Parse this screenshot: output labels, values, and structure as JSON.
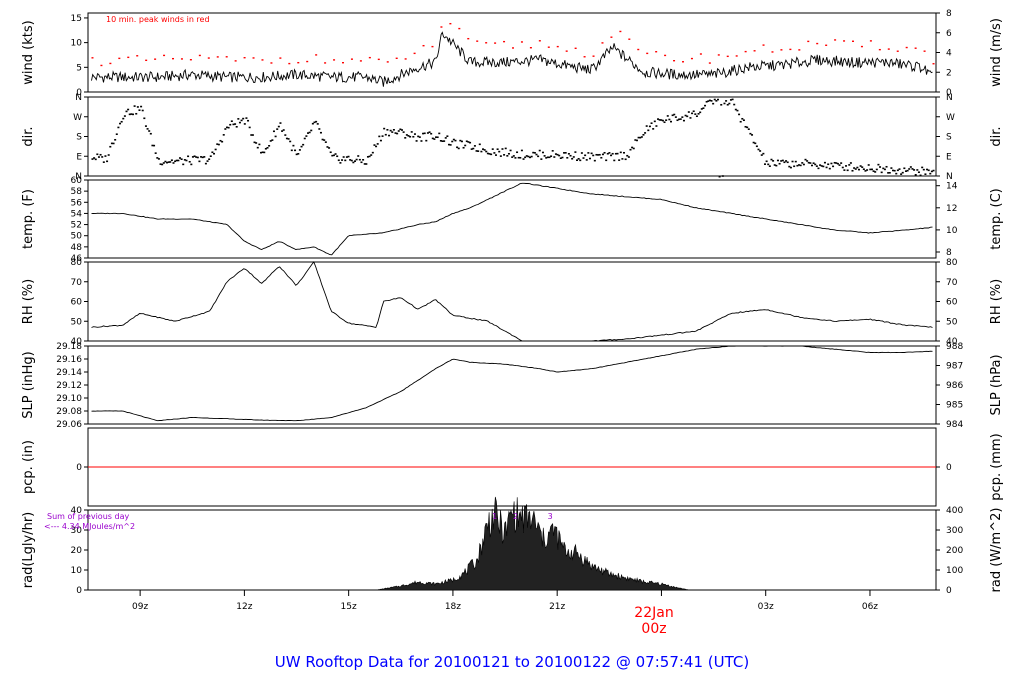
{
  "footer_title": "UW Rooftop Data for 20100121  to  20100122 @ 07:57:41  (UTC)",
  "date_label": "22Jan",
  "date_sublabel": "00z",
  "time_ticks": [
    "09z",
    "12z",
    "15z",
    "18z",
    "21z",
    "00z",
    "03z",
    "06z"
  ],
  "colors": {
    "axis": "#000000",
    "peak": "#ff0000",
    "pcp_line": "#ff0000",
    "footer": "#0000ff",
    "date": "#ff0000",
    "annot": "#9900cc"
  },
  "chart_data": [
    {
      "id": "wind",
      "type": "line",
      "ylabel_left": "wind (kts)",
      "ylabel_right": "wind (m/s)",
      "ylim": [
        0,
        16
      ],
      "left_ticks": [
        "0",
        "5",
        "10",
        "15"
      ],
      "right_ticks": [
        "0",
        "2",
        "4",
        "6",
        "8"
      ],
      "annotation": "10 min. peak winds in red",
      "x_hours": [
        7.6,
        8.5,
        9.5,
        10.5,
        11.5,
        12.5,
        13.5,
        14.5,
        15.5,
        16.0,
        17.0,
        17.5,
        17.7,
        18.5,
        19.5,
        20.5,
        21.5,
        22.0,
        22.6,
        23.5,
        24.5,
        25.5,
        26.5,
        27.5,
        28.5,
        29.5,
        30.5,
        31.5,
        31.8
      ],
      "values": [
        3,
        3,
        3,
        3.5,
        3,
        3,
        3.5,
        3,
        3,
        2,
        5,
        6,
        12,
        6,
        6,
        6.5,
        5,
        4.5,
        9,
        4,
        3.5,
        3.5,
        5,
        5.5,
        6.5,
        6,
        6,
        5,
        3
      ]
    },
    {
      "id": "dir",
      "type": "scatter",
      "ylabel": "dir.",
      "ticks": [
        "N",
        "E",
        "S",
        "W",
        "N"
      ],
      "ylim": [
        0,
        360
      ],
      "x_hours": [
        7.6,
        8.0,
        8.5,
        9.0,
        9.5,
        10.0,
        11.0,
        11.5,
        12.0,
        12.5,
        13.0,
        13.5,
        14.0,
        14.5,
        15.0,
        15.5,
        16.0,
        16.5,
        17.0,
        17.5,
        18.0,
        18.5,
        19.0,
        20.0,
        21.0,
        22.0,
        22.5,
        23.0,
        23.5,
        24.0,
        24.5,
        25.0,
        25.5,
        26.0,
        27.0,
        28.0,
        29.0,
        30.0,
        31.0,
        31.8
      ],
      "values": [
        90,
        80,
        290,
        310,
        75,
        70,
        80,
        230,
        260,
        100,
        240,
        90,
        250,
        85,
        80,
        70,
        210,
        200,
        180,
        190,
        150,
        140,
        120,
        100,
        100,
        90,
        90,
        100,
        210,
        260,
        270,
        290,
        350,
        340,
        60,
        60,
        50,
        40,
        30,
        20
      ]
    },
    {
      "id": "temp",
      "type": "line",
      "ylabel_left": "temp. (F)",
      "ylabel_right": "temp. (C)",
      "ylim": [
        46,
        60
      ],
      "left_ticks": [
        "46",
        "48",
        "50",
        "52",
        "54",
        "56",
        "58",
        "60"
      ],
      "right_ticks": [
        "8",
        "10",
        "12",
        "14"
      ],
      "x_hours": [
        7.6,
        8.5,
        9.5,
        10.5,
        11.5,
        12.0,
        12.5,
        13.0,
        13.5,
        14.0,
        14.5,
        15.0,
        16.0,
        17.0,
        17.5,
        18.0,
        18.5,
        19.5,
        20.0,
        21.0,
        22.0,
        23.0,
        24.0,
        25.0,
        26.0,
        27.0,
        28.0,
        29.0,
        30.0,
        31.0,
        31.8
      ],
      "values": [
        54,
        54,
        53,
        53,
        52,
        49,
        47.5,
        49,
        47.5,
        48,
        46.5,
        50,
        50.5,
        52,
        52.5,
        54,
        55,
        58,
        59.5,
        58.5,
        57.5,
        57,
        56.5,
        55,
        54,
        53,
        52,
        51,
        50.5,
        51,
        51.5
      ]
    },
    {
      "id": "rh",
      "type": "line",
      "ylabel_left": "RH (%)",
      "ylabel_right": "RH (%)",
      "ylim": [
        40,
        80
      ],
      "left_ticks": [
        "40",
        "50",
        "60",
        "70",
        "80"
      ],
      "right_ticks": [
        "40",
        "50",
        "60",
        "70",
        "80"
      ],
      "x_hours": [
        7.6,
        8.5,
        9.0,
        10.0,
        11.0,
        11.5,
        12.0,
        12.5,
        13.0,
        13.5,
        14.0,
        14.5,
        15.0,
        15.8,
        16.0,
        16.5,
        17.0,
        17.5,
        18.0,
        19.0,
        20.0,
        21.0,
        22.0,
        23.0,
        24.0,
        25.0,
        26.0,
        27.0,
        28.0,
        29.0,
        30.0,
        31.0,
        31.8
      ],
      "values": [
        47,
        48,
        54,
        50,
        55,
        70,
        77,
        69,
        78,
        68,
        80,
        55,
        49,
        47,
        60,
        62,
        56,
        61,
        53,
        50,
        40,
        38,
        40,
        41,
        43,
        45,
        54,
        56,
        52,
        50,
        51,
        48,
        47
      ]
    },
    {
      "id": "slp",
      "type": "line",
      "ylabel_left": "SLP (inHg)",
      "ylabel_right": "SLP (hPa)",
      "ylim": [
        29.06,
        29.18
      ],
      "left_ticks": [
        "29.06",
        "29.08",
        "29.10",
        "29.12",
        "29.14",
        "29.16",
        "29.18"
      ],
      "right_ticks": [
        "984",
        "985",
        "986",
        "987",
        "988"
      ],
      "x_hours": [
        7.6,
        8.5,
        9.5,
        10.5,
        11.5,
        12.5,
        13.5,
        14.5,
        15.5,
        16.5,
        17.5,
        18.0,
        18.5,
        19.5,
        20.5,
        21.0,
        22.0,
        23.0,
        24.0,
        25.0,
        26.0,
        27.0,
        28.0,
        29.0,
        30.0,
        31.0,
        31.8
      ],
      "values": [
        29.08,
        29.08,
        29.065,
        29.07,
        29.068,
        29.066,
        29.065,
        29.07,
        29.085,
        29.11,
        29.145,
        29.16,
        29.155,
        29.152,
        29.145,
        29.14,
        29.145,
        29.155,
        29.165,
        29.175,
        29.18,
        29.18,
        29.18,
        29.175,
        29.17,
        29.17,
        29.172
      ]
    },
    {
      "id": "pcp",
      "type": "line",
      "ylabel_left": "pcp. (in)",
      "ylabel_right": "pcp. (mm)",
      "ylim": [
        -1,
        1
      ],
      "left_ticks": [
        "0"
      ],
      "right_ticks": [
        "0"
      ],
      "x_hours": [
        7.6,
        31.8
      ],
      "values": [
        0,
        0
      ]
    },
    {
      "id": "rad",
      "type": "area",
      "ylabel_left": "rad(Lgly/hr)",
      "ylabel_right": "rad (W/m^2)",
      "ylim": [
        0,
        40
      ],
      "left_ticks": [
        "0",
        "10",
        "20",
        "30",
        "40"
      ],
      "right_ticks": [
        "0",
        "100",
        "200",
        "300",
        "400"
      ],
      "annotation_line1": "Sum of previous day",
      "annotation_line2": "<--- 4.34 MJoules/m^2",
      "markers": [
        "1",
        "2",
        "3"
      ],
      "marker_hours": [
        19.2,
        19.8,
        20.8
      ],
      "x_hours": [
        15.8,
        16.5,
        17.0,
        17.5,
        18.0,
        18.3,
        18.7,
        19.0,
        19.2,
        19.5,
        19.7,
        20.0,
        20.3,
        20.6,
        20.9,
        21.2,
        21.6,
        22.0,
        22.5,
        23.0,
        23.5,
        24.0,
        24.5,
        24.8
      ],
      "values": [
        0,
        2,
        4,
        3,
        5,
        8,
        15,
        33,
        38,
        28,
        39,
        36,
        35,
        25,
        30,
        20,
        18,
        12,
        8,
        6,
        4,
        3,
        1,
        0
      ]
    }
  ]
}
